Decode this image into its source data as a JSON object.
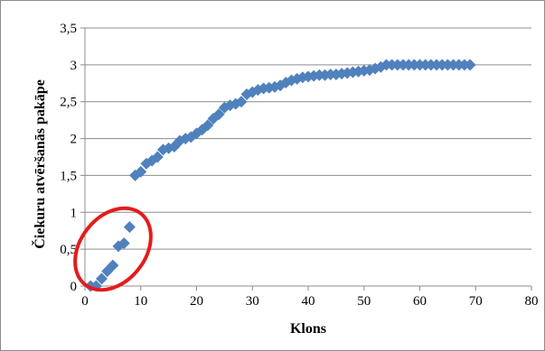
{
  "chart_data": {
    "type": "scatter",
    "title": "",
    "xlabel": "Klons",
    "ylabel": "Čiekuru atvēršanās pakāpe",
    "xlim": [
      0,
      80
    ],
    "ylim": [
      0,
      3.5
    ],
    "x_ticks": [
      "0",
      "10",
      "20",
      "30",
      "40",
      "50",
      "60",
      "70",
      "80"
    ],
    "y_ticks": [
      "0",
      "0,5",
      "1",
      "1,5",
      "2",
      "2,5",
      "3",
      "3,5"
    ],
    "grid": "horizontal",
    "legend": "none",
    "marker": "diamond",
    "marker_color": "#4f81bd",
    "annotation": {
      "shape": "ellipse",
      "color": "#e41c1c",
      "encircles": "x 1–8"
    },
    "series": [
      {
        "x": [
          1,
          2,
          3,
          4,
          5,
          6,
          7,
          8,
          9,
          10,
          11,
          12,
          13,
          14,
          15,
          16,
          17,
          18,
          19,
          20,
          21,
          22,
          23,
          24,
          25,
          26,
          27,
          28,
          29,
          30,
          31,
          32,
          33,
          34,
          35,
          36,
          37,
          38,
          39,
          40,
          41,
          42,
          43,
          44,
          45,
          46,
          47,
          48,
          49,
          50,
          51,
          52,
          53,
          54,
          55,
          56,
          57,
          58,
          59,
          60,
          61,
          62,
          63,
          64,
          65,
          66,
          67,
          68,
          69
        ],
        "y": [
          0.0,
          0.0,
          0.1,
          0.2,
          0.28,
          0.54,
          0.58,
          0.8,
          1.5,
          1.55,
          1.66,
          1.7,
          1.75,
          1.85,
          1.87,
          1.89,
          1.97,
          2.0,
          2.02,
          2.07,
          2.12,
          2.18,
          2.27,
          2.33,
          2.42,
          2.45,
          2.47,
          2.5,
          2.6,
          2.63,
          2.66,
          2.68,
          2.69,
          2.7,
          2.72,
          2.76,
          2.79,
          2.81,
          2.83,
          2.84,
          2.85,
          2.86,
          2.86,
          2.87,
          2.87,
          2.88,
          2.89,
          2.9,
          2.91,
          2.92,
          2.93,
          2.95,
          2.97,
          3.0,
          3.0,
          3.0,
          3.0,
          3.0,
          3.0,
          3.0,
          3.0,
          3.0,
          3.0,
          3.0,
          3.0,
          3.0,
          3.0,
          3.0,
          3.0
        ]
      }
    ]
  }
}
